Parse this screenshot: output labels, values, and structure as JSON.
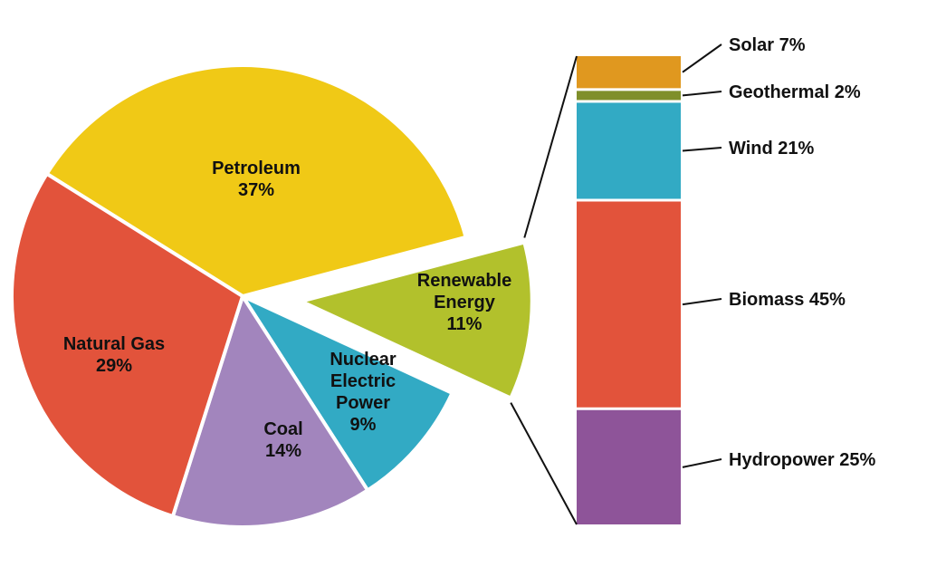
{
  "chart_data": {
    "type": "pie",
    "title": "",
    "slices": [
      {
        "label_lines": [
          "Petroleum"
        ],
        "value_label": "37%",
        "value": 37,
        "color": "#f0c916"
      },
      {
        "label_lines": [
          "Renewable",
          "Energy"
        ],
        "value_label": "11%",
        "value": 11,
        "color": "#b2c12c",
        "exploded": true
      },
      {
        "label_lines": [
          "Nuclear",
          "Electric",
          "Power"
        ],
        "value_label": "9%",
        "value": 9,
        "color": "#32aac4"
      },
      {
        "label_lines": [
          "Coal"
        ],
        "value_label": "14%",
        "value": 14,
        "color": "#a285bd"
      },
      {
        "label_lines": [
          "Natural Gas"
        ],
        "value_label": "29%",
        "value": 29,
        "color": "#e2533b"
      }
    ],
    "breakdown": {
      "parent": "Renewable Energy",
      "type": "stacked_bar",
      "segments": [
        {
          "label": "Solar 7%",
          "name": "Solar",
          "value": 7,
          "color": "#e0981f"
        },
        {
          "label": "Geothermal 2%",
          "name": "Geothermal",
          "value": 2,
          "color": "#7f8f2a"
        },
        {
          "label": "Wind 21%",
          "name": "Wind",
          "value": 21,
          "color": "#32aac4"
        },
        {
          "label": "Biomass 45%",
          "name": "Biomass",
          "value": 45,
          "color": "#e2533b"
        },
        {
          "label": "Hydropower 25%",
          "name": "Hydropower",
          "value": 25,
          "color": "#8e5499"
        }
      ]
    }
  }
}
